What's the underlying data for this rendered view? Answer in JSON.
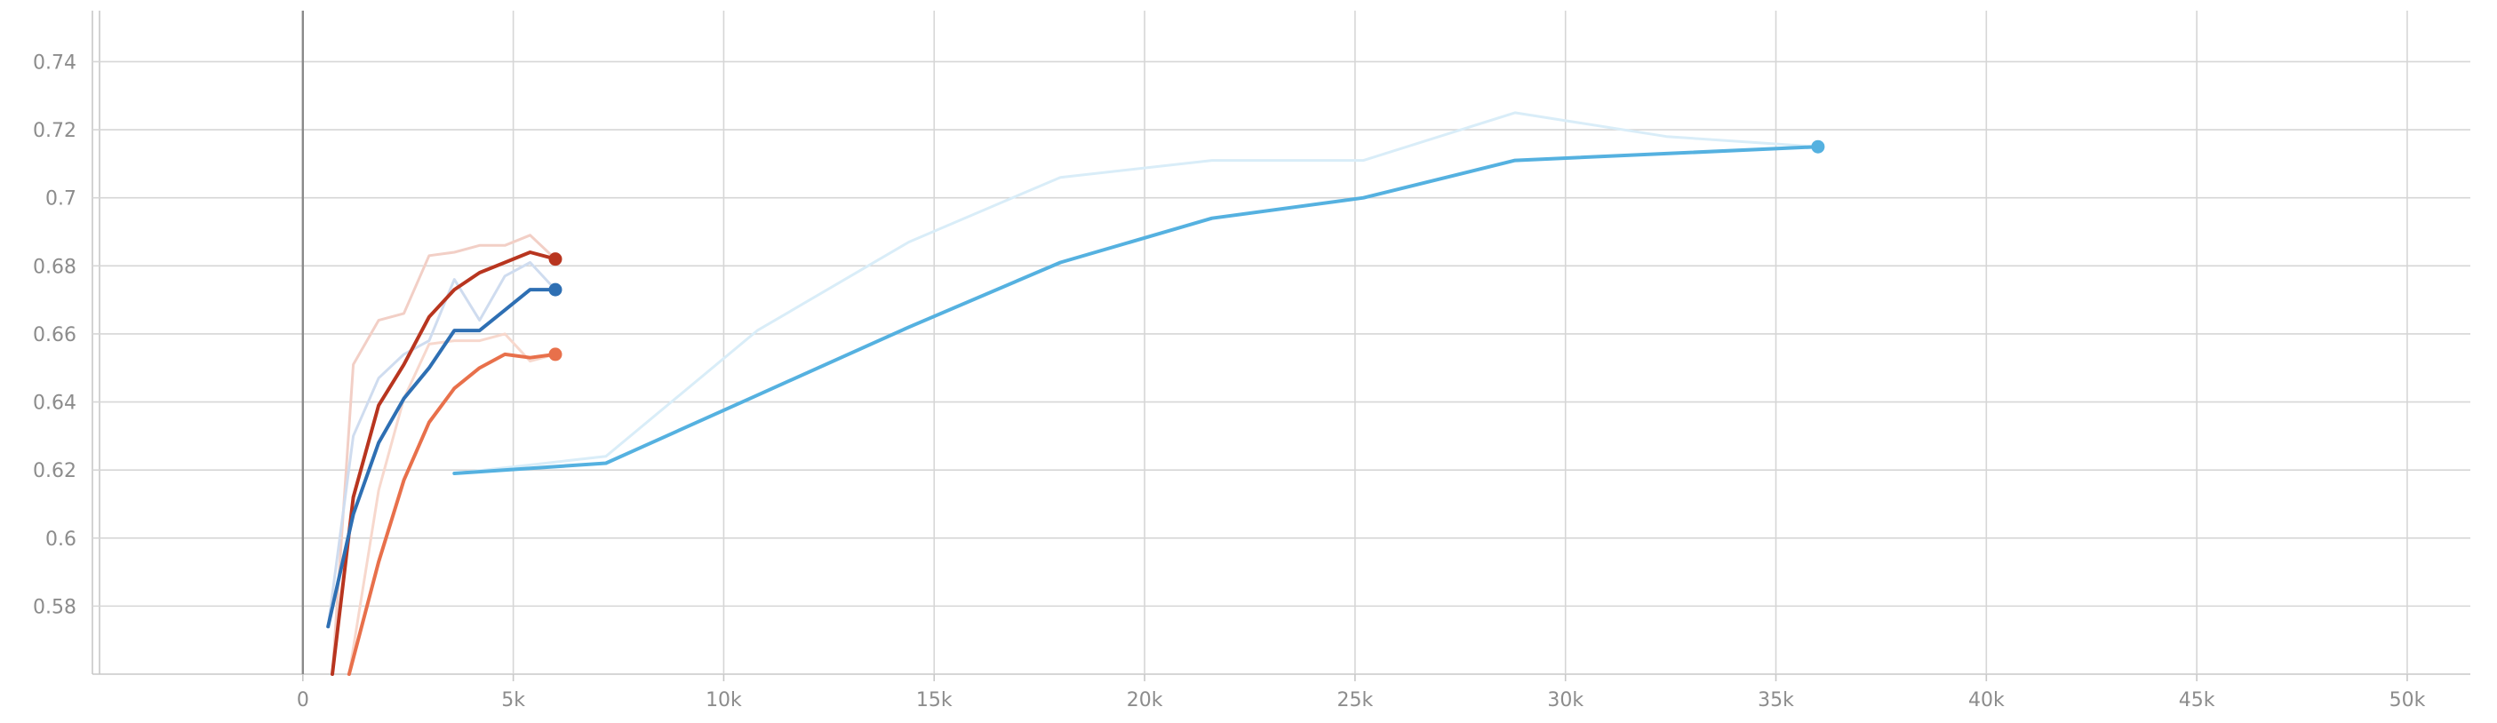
{
  "chart_data": {
    "type": "line",
    "title": "",
    "xlabel": "",
    "ylabel": "",
    "xlim": [
      -5000,
      51500
    ],
    "ylim": [
      0.56,
      0.755
    ],
    "grid": true,
    "x_ticks": [
      0,
      5000,
      10000,
      15000,
      20000,
      25000,
      30000,
      35000,
      40000,
      45000,
      50000
    ],
    "x_tick_labels": [
      "0",
      "5k",
      "10k",
      "15k",
      "20k",
      "25k",
      "30k",
      "35k",
      "40k",
      "45k",
      "50k"
    ],
    "y_ticks": [
      0.58,
      0.6,
      0.62,
      0.64,
      0.66,
      0.68,
      0.7,
      0.72,
      0.74
    ],
    "y_tick_labels": [
      "0.58",
      "0.6",
      "0.62",
      "0.64",
      "0.66",
      "0.68",
      "0.7",
      "0.72",
      "0.74"
    ],
    "series": [
      {
        "color": "#b8351f",
        "raw_color": "#f2cfc6",
        "x": [
          700,
          1200,
          1800,
          2400,
          3000,
          3600,
          4200,
          4800,
          5400,
          6000
        ],
        "smoothed": [
          0.56,
          0.612,
          0.639,
          0.651,
          0.665,
          0.673,
          0.678,
          0.681,
          0.684,
          0.682
        ],
        "raw": [
          0.56,
          0.651,
          0.664,
          0.666,
          0.683,
          0.684,
          0.686,
          0.686,
          0.689,
          0.682
        ]
      },
      {
        "color": "#2e6fb3",
        "raw_color": "#cfdcef",
        "x": [
          600,
          1200,
          1800,
          2400,
          3000,
          3600,
          4200,
          4800,
          5400,
          6000
        ],
        "smoothed": [
          0.574,
          0.607,
          0.628,
          0.641,
          0.65,
          0.661,
          0.661,
          0.667,
          0.673,
          0.673
        ],
        "raw": [
          0.574,
          0.63,
          0.647,
          0.654,
          0.658,
          0.676,
          0.664,
          0.677,
          0.681,
          0.673
        ]
      },
      {
        "color": "#e8704b",
        "raw_color": "#f7d8cd",
        "x": [
          1100,
          1800,
          2400,
          3000,
          3600,
          4200,
          4800,
          5400,
          6000
        ],
        "smoothed": [
          0.56,
          0.593,
          0.617,
          0.634,
          0.644,
          0.65,
          0.654,
          0.653,
          0.654
        ],
        "raw": [
          0.56,
          0.614,
          0.641,
          0.657,
          0.658,
          0.658,
          0.66,
          0.652,
          0.654
        ]
      },
      {
        "color": "#55b1e0",
        "raw_color": "#d9edf8",
        "x": [
          3600,
          7200,
          10800,
          14400,
          18000,
          21600,
          25200,
          28800,
          32400,
          36000
        ],
        "smoothed": [
          0.619,
          0.622,
          0.642,
          0.662,
          0.681,
          0.694,
          0.7,
          0.711,
          0.713,
          0.715
        ],
        "raw": [
          0.619,
          0.624,
          0.661,
          0.687,
          0.706,
          0.711,
          0.711,
          0.725,
          0.718,
          0.715
        ]
      }
    ]
  }
}
